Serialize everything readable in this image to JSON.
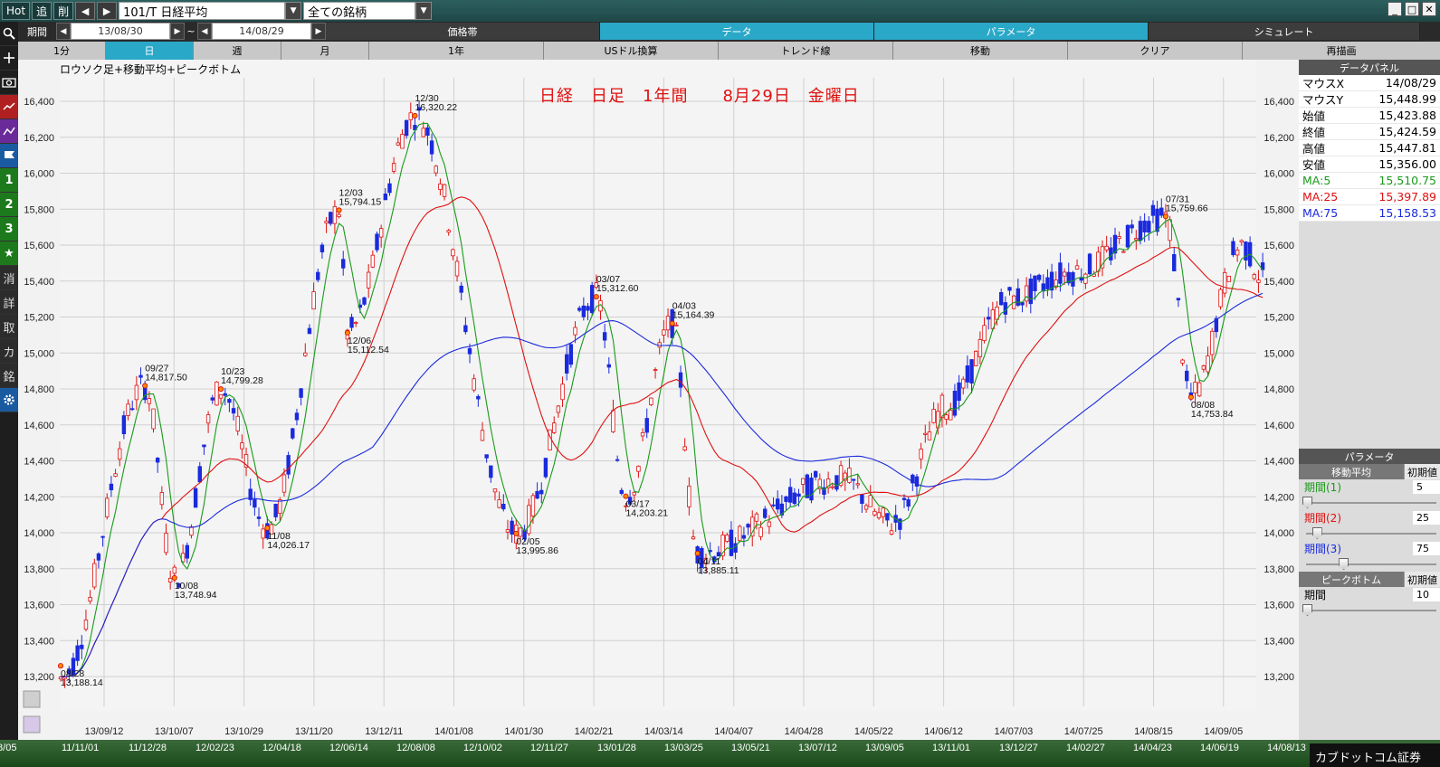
{
  "topbar": {
    "hot": "Hot",
    "add": "追",
    "del": "削",
    "symbol": "101/T 日経平均",
    "group": "全ての銘柄",
    "min": "_",
    "max": "□",
    "close": "✕"
  },
  "lefttools": [
    "search-icon",
    "plus-icon",
    "camera-icon",
    "chart-red-icon",
    "chart-purple-icon",
    "flag-icon",
    "1",
    "2",
    "3",
    "star-icon",
    "消",
    "詳",
    "取",
    "カ",
    "銘",
    "gear-icon"
  ],
  "lefttools_labels": {
    "one": "1",
    "two": "2",
    "three": "3",
    "cancel": "消",
    "detail": "詳",
    "trade": "取",
    "ka": "カ",
    "mei": "銘"
  },
  "row2": {
    "period_label": "期間",
    "date_from": "13/08/30",
    "tilde": "~",
    "date_to": "14/08/29",
    "tabs": [
      "価格帯",
      "データ",
      "パラメータ",
      "シミュレート"
    ]
  },
  "row3": {
    "tabs": [
      "1分",
      "日",
      "週",
      "月",
      "1年",
      "USドル換算",
      "トレンド線",
      "移動",
      "クリア",
      "再描画"
    ]
  },
  "chart": {
    "title": "ロウソク足+移動平均+ピークボトム",
    "heading": "日経　日足　1年間　　8月29日　金曜日"
  },
  "chart_data": {
    "type": "candlestick",
    "ylim": [
      13200,
      16500
    ],
    "yticks": [
      "16,400",
      "16,200",
      "16,000",
      "15,800",
      "15,600",
      "15,400",
      "15,200",
      "15,000",
      "14,800",
      "14,600",
      "14,400",
      "14,200",
      "14,000",
      "13,800",
      "13,600",
      "13,400",
      "13,200"
    ],
    "yticks_values": [
      16400,
      16200,
      16000,
      15800,
      15600,
      15400,
      15200,
      15000,
      14800,
      14600,
      14400,
      14200,
      14000,
      13800,
      13600,
      13400,
      13200
    ],
    "xticks": [
      "13/09/12",
      "13/10/07",
      "13/10/29",
      "13/11/20",
      "13/12/11",
      "14/01/08",
      "14/01/30",
      "14/02/21",
      "14/03/14",
      "14/04/07",
      "14/04/28",
      "14/05/22",
      "14/06/12",
      "14/07/03",
      "14/07/25",
      "14/08/15",
      "14/09/05"
    ],
    "peaks": [
      {
        "date": "08/28",
        "value": "13,188.14"
      },
      {
        "date": "09/27",
        "value": "14,817.50"
      },
      {
        "date": "10/08",
        "value": "13,748.94"
      },
      {
        "date": "10/23",
        "value": "14,799.28"
      },
      {
        "date": "11/08",
        "value": "14,026.17"
      },
      {
        "date": "12/03",
        "value": "15,794.15"
      },
      {
        "date": "12/06",
        "value": "15,112.54"
      },
      {
        "date": "12/30",
        "value": "16,320.22"
      },
      {
        "date": "02/05",
        "value": "13,995.86"
      },
      {
        "date": "03/07",
        "value": "15,312.60"
      },
      {
        "date": "03/17",
        "value": "14,203.21"
      },
      {
        "date": "04/03",
        "value": "15,164.39"
      },
      {
        "date": "04/11",
        "value": "13,885.11"
      },
      {
        "date": "07/31",
        "value": "15,759.66"
      },
      {
        "date": "08/08",
        "value": "14,753.84"
      }
    ],
    "series": [
      {
        "name": "MA:5",
        "color": "#1a9a1a"
      },
      {
        "name": "MA:25",
        "color": "#e01010"
      },
      {
        "name": "MA:75",
        "color": "#1a2adc"
      }
    ]
  },
  "bottombar": {
    "dates": [
      "/8/05",
      "11/11/01",
      "11/12/28",
      "12/02/23",
      "12/04/18",
      "12/06/14",
      "12/08/08",
      "12/10/02",
      "12/11/27",
      "13/01/28",
      "13/03/25",
      "13/05/21",
      "13/07/12",
      "13/09/05",
      "13/11/01",
      "13/12/27",
      "14/02/27",
      "14/04/23",
      "14/06/19",
      "14/08/13"
    ],
    "brand": "カブドットコム証券"
  },
  "datapanel": {
    "title": "データパネル",
    "rows": [
      {
        "k": "マウスX",
        "v": "14/08/29",
        "color": "#000000"
      },
      {
        "k": "マウスY",
        "v": "15,448.99",
        "color": "#000000"
      },
      {
        "k": "始値",
        "v": "15,423.88",
        "color": "#000000"
      },
      {
        "k": "終値",
        "v": "15,424.59",
        "color": "#000000"
      },
      {
        "k": "高値",
        "v": "15,447.81",
        "color": "#000000"
      },
      {
        "k": "安値",
        "v": "15,356.00",
        "color": "#000000"
      },
      {
        "k": "MA:5",
        "v": "15,510.75",
        "color": "#1a9a1a"
      },
      {
        "k": "MA:25",
        "v": "15,397.89",
        "color": "#e01010"
      },
      {
        "k": "MA:75",
        "v": "15,158.53",
        "color": "#1a2adc"
      }
    ]
  },
  "params": {
    "title": "パラメータ",
    "ma_label": "移動平均",
    "init_label": "初期値",
    "p1": {
      "label": "期間(1)",
      "value": "5",
      "color": "#1a9a1a",
      "level": 0.0
    },
    "p2": {
      "label": "期間(2)",
      "value": "25",
      "color": "#e01010",
      "level": 0.08
    },
    "p3": {
      "label": "期間(3)",
      "value": "75",
      "color": "#1a2adc",
      "level": 0.3
    },
    "pb_label": "ピークボトム",
    "pb_init": "初期値",
    "pb_period": {
      "label": "期間",
      "value": "10",
      "level": 0.0
    }
  }
}
